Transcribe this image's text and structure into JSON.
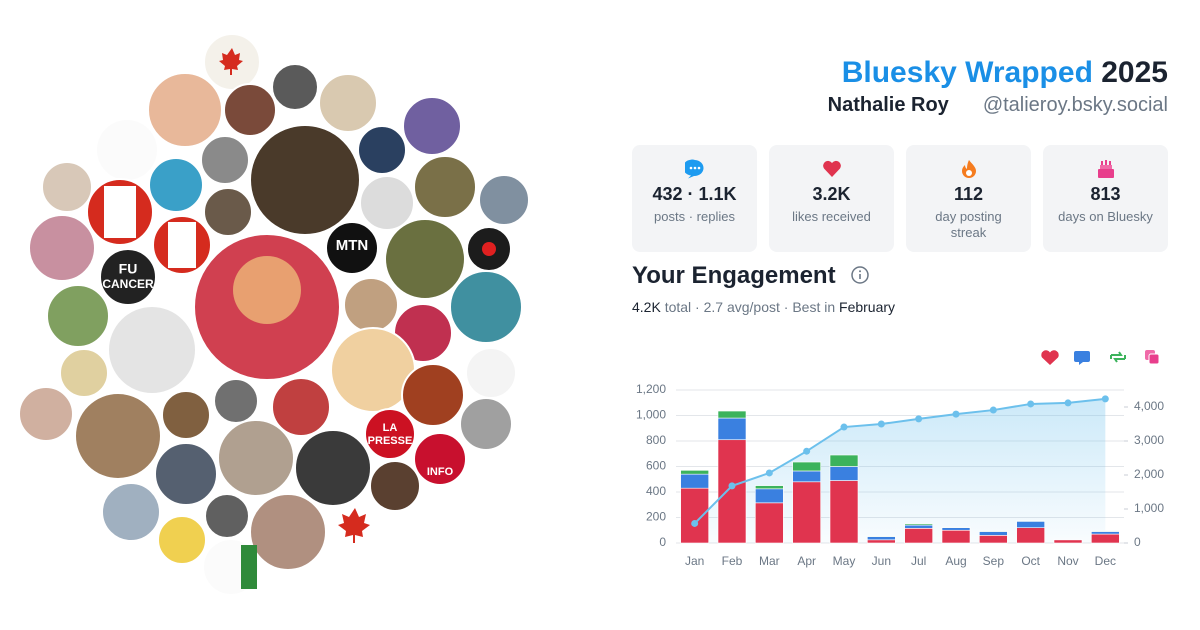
{
  "header": {
    "brand": "Bluesky Wrapped",
    "year": "2025",
    "name": "Nathalie Roy",
    "handle": "@talieroy.bsky.social"
  },
  "avatar_labels": [
    "MTN",
    "FU",
    "CANCER",
    "LA",
    "PRESSE",
    "INFO"
  ],
  "stats": [
    {
      "value": "432 · 1.1K",
      "label": "posts · replies"
    },
    {
      "value": "3.2K",
      "label": "likes received"
    },
    {
      "value": "112",
      "label": "day posting streak"
    },
    {
      "value": "813",
      "label": "days on Bluesky"
    }
  ],
  "engagement": {
    "title": "Your Engagement",
    "total": "4.2K",
    "middle": "total · 2.7 avg/post · Best in",
    "best": "February"
  },
  "chart_data": {
    "type": "bar",
    "stacked": true,
    "grid": true,
    "categories": [
      "Jan",
      "Feb",
      "Mar",
      "Apr",
      "May",
      "Jun",
      "Jul",
      "Aug",
      "Sep",
      "Oct",
      "Nov",
      "Dec"
    ],
    "series": [
      {
        "color": "#e0344f",
        "values": [
          430,
          810,
          315,
          480,
          490,
          25,
          115,
          100,
          60,
          120,
          25,
          70
        ]
      },
      {
        "color": "#3a80e0",
        "values": [
          110,
          170,
          110,
          85,
          110,
          25,
          25,
          20,
          30,
          50,
          5,
          20
        ]
      },
      {
        "color": "#3cb35c",
        "values": [
          30,
          55,
          25,
          70,
          90,
          5,
          10,
          5,
          5,
          5,
          0,
          5
        ]
      },
      {
        "type": "line",
        "axis": "y2",
        "color": "#6cc0ec",
        "values": [
          575,
          1680,
          2060,
          2700,
          3410,
          3500,
          3650,
          3790,
          3910,
          4090,
          4120,
          4240
        ]
      }
    ],
    "ylim": [
      0,
      1200
    ],
    "yticks": [
      0,
      200,
      400,
      600,
      800,
      {
        "value": 1000,
        "label": "1,000"
      },
      {
        "value": 1200,
        "label": "1,200"
      }
    ],
    "y2lim": [
      0,
      4500
    ],
    "y2ticks": [
      0,
      {
        "value": 1000,
        "label": "1,000"
      },
      {
        "value": 2000,
        "label": "2,000"
      },
      {
        "value": 3000,
        "label": "3,000"
      },
      {
        "value": 4000,
        "label": "4,000"
      }
    ]
  }
}
